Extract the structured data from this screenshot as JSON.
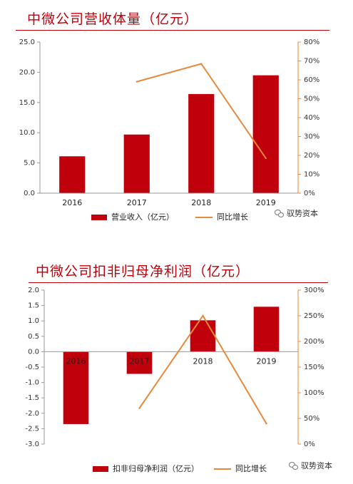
{
  "watermark": "驭势资本",
  "chart_data": [
    {
      "type": "bar",
      "title": "中微公司营收体量（亿元）",
      "categories": [
        "2016",
        "2017",
        "2018",
        "2019"
      ],
      "y_ticks": [
        "0.0",
        "5.0",
        "10.0",
        "15.0",
        "20.0",
        "25.0"
      ],
      "y2_ticks": [
        "0%",
        "10%",
        "20%",
        "30%",
        "40%",
        "50%",
        "60%",
        "70%",
        "80%"
      ],
      "ylim": [
        0,
        25
      ],
      "y2lim": [
        0,
        80
      ],
      "grid": false,
      "legend_position": "bottom",
      "series": [
        {
          "name": "营业收入（亿元）",
          "type": "bar",
          "axis": "left",
          "color": "#c0000b",
          "values": [
            6.1,
            9.7,
            16.4,
            19.5
          ]
        },
        {
          "name": "同比增长",
          "type": "line",
          "axis": "right",
          "color": "#e8893a",
          "values": [
            null,
            59,
            68.5,
            18.5
          ]
        }
      ]
    },
    {
      "type": "bar",
      "title": "中微公司扣非归母净利润（亿元）",
      "categories": [
        "2016",
        "2017",
        "2018",
        "2019"
      ],
      "y_ticks": [
        "-3.0",
        "-2.5",
        "-2.0",
        "-1.5",
        "-1.0",
        "-0.5",
        "0.0",
        "0.5",
        "1.0",
        "1.5",
        "2.0"
      ],
      "y2_ticks": [
        "0%",
        "50%",
        "100%",
        "150%",
        "200%",
        "250%",
        "300%"
      ],
      "ylim": [
        -3,
        2
      ],
      "y2lim": [
        0,
        300
      ],
      "grid": false,
      "legend_position": "bottom",
      "series": [
        {
          "name": "扣非归母净利润（亿元）",
          "type": "bar",
          "axis": "left",
          "color": "#c0000b",
          "values": [
            -2.35,
            -0.72,
            1.02,
            1.46
          ]
        },
        {
          "name": "同比增长",
          "type": "line",
          "axis": "right",
          "color": "#e8893a",
          "values": [
            null,
            70,
            250,
            40
          ]
        }
      ]
    }
  ]
}
